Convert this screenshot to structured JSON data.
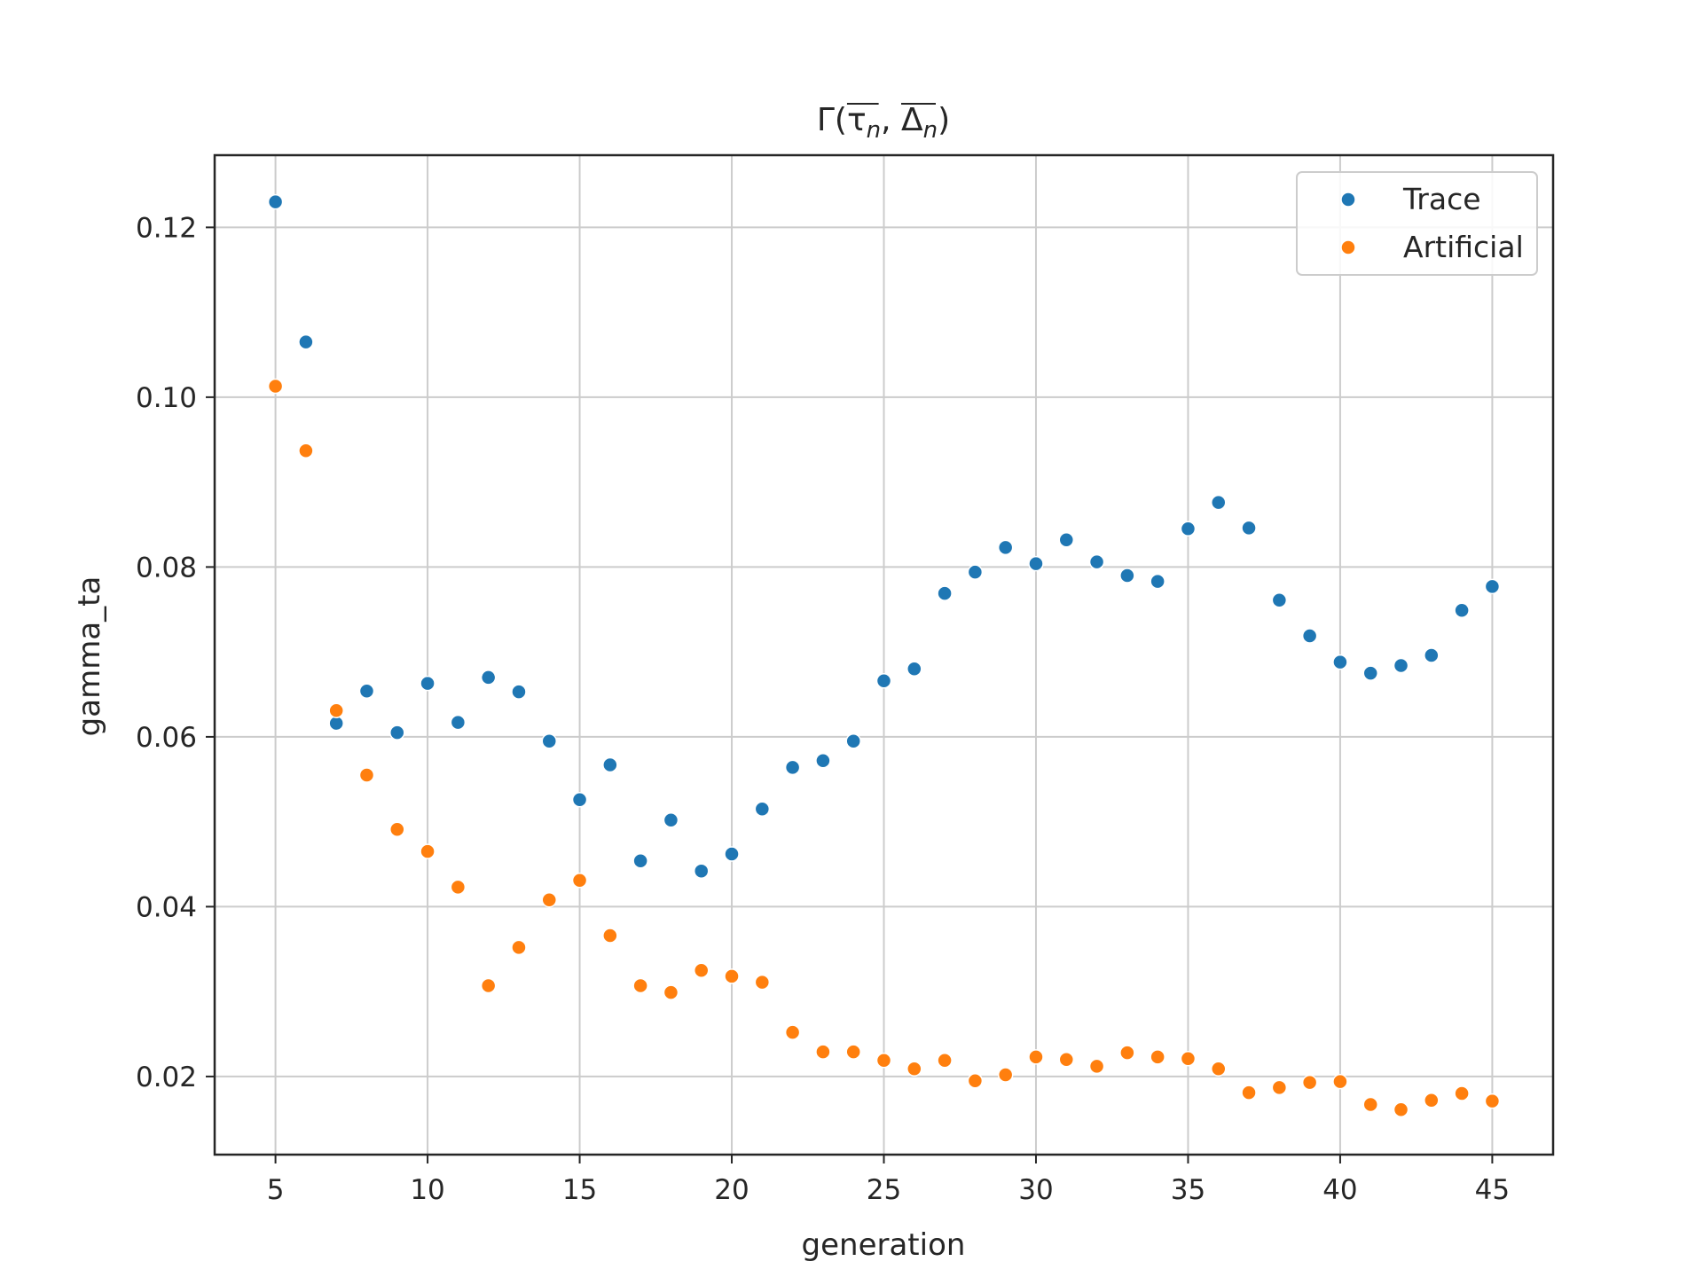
{
  "chart_data": {
    "type": "scatter",
    "title_parts": {
      "prefix": "Γ(",
      "tau": "τ",
      "sub1": "n",
      "sep": ", ",
      "delta": "Δ",
      "sub2": "n",
      "suffix": ")"
    },
    "xlabel": "generation",
    "ylabel": "gamma_ta",
    "xlim": [
      3,
      47
    ],
    "ylim": [
      0.0108,
      0.1285
    ],
    "xticks": [
      5,
      10,
      15,
      20,
      25,
      30,
      35,
      40,
      45
    ],
    "yticks": [
      0.02,
      0.04,
      0.06,
      0.08,
      0.1,
      0.12
    ],
    "ytick_labels": [
      "0.02",
      "0.04",
      "0.06",
      "0.08",
      "0.10",
      "0.12"
    ],
    "grid": true,
    "legend_position": "top-right",
    "x": [
      5,
      6,
      7,
      8,
      9,
      10,
      11,
      12,
      13,
      14,
      15,
      16,
      17,
      18,
      19,
      20,
      21,
      22,
      23,
      24,
      25,
      26,
      27,
      28,
      29,
      30,
      31,
      32,
      33,
      34,
      35,
      36,
      37,
      38,
      39,
      40,
      41,
      42,
      43,
      44,
      45
    ],
    "series": [
      {
        "name": "Trace",
        "color": "#1f77b4",
        "values": [
          0.123,
          0.1065,
          0.0616,
          0.0654,
          0.0605,
          0.0663,
          0.0617,
          0.067,
          0.0653,
          0.0595,
          0.0526,
          0.0567,
          0.0454,
          0.0502,
          0.0442,
          0.0462,
          0.0515,
          0.0564,
          0.0572,
          0.0595,
          0.0666,
          0.068,
          0.0769,
          0.0794,
          0.0823,
          0.0804,
          0.0832,
          0.0806,
          0.079,
          0.0783,
          0.0845,
          0.0876,
          0.0846,
          0.0761,
          0.0719,
          0.0688,
          0.0675,
          0.0684,
          0.0696,
          0.0749,
          0.0777
        ]
      },
      {
        "name": "Artificial",
        "color": "#ff7f0e",
        "values": [
          0.1013,
          0.0937,
          0.0631,
          0.0555,
          0.0491,
          0.0465,
          0.0423,
          0.0307,
          0.0352,
          0.0408,
          0.0431,
          0.0366,
          0.0307,
          0.0299,
          0.0325,
          0.0318,
          0.0311,
          0.0252,
          0.0229,
          0.0229,
          0.0219,
          0.0209,
          0.0219,
          0.0195,
          0.0202,
          0.0223,
          0.022,
          0.0212,
          0.0228,
          0.0223,
          0.0221,
          0.0209,
          0.0181,
          0.0187,
          0.0193,
          0.0194,
          0.0167,
          0.0161,
          0.0172,
          0.018,
          0.0171
        ]
      }
    ]
  }
}
